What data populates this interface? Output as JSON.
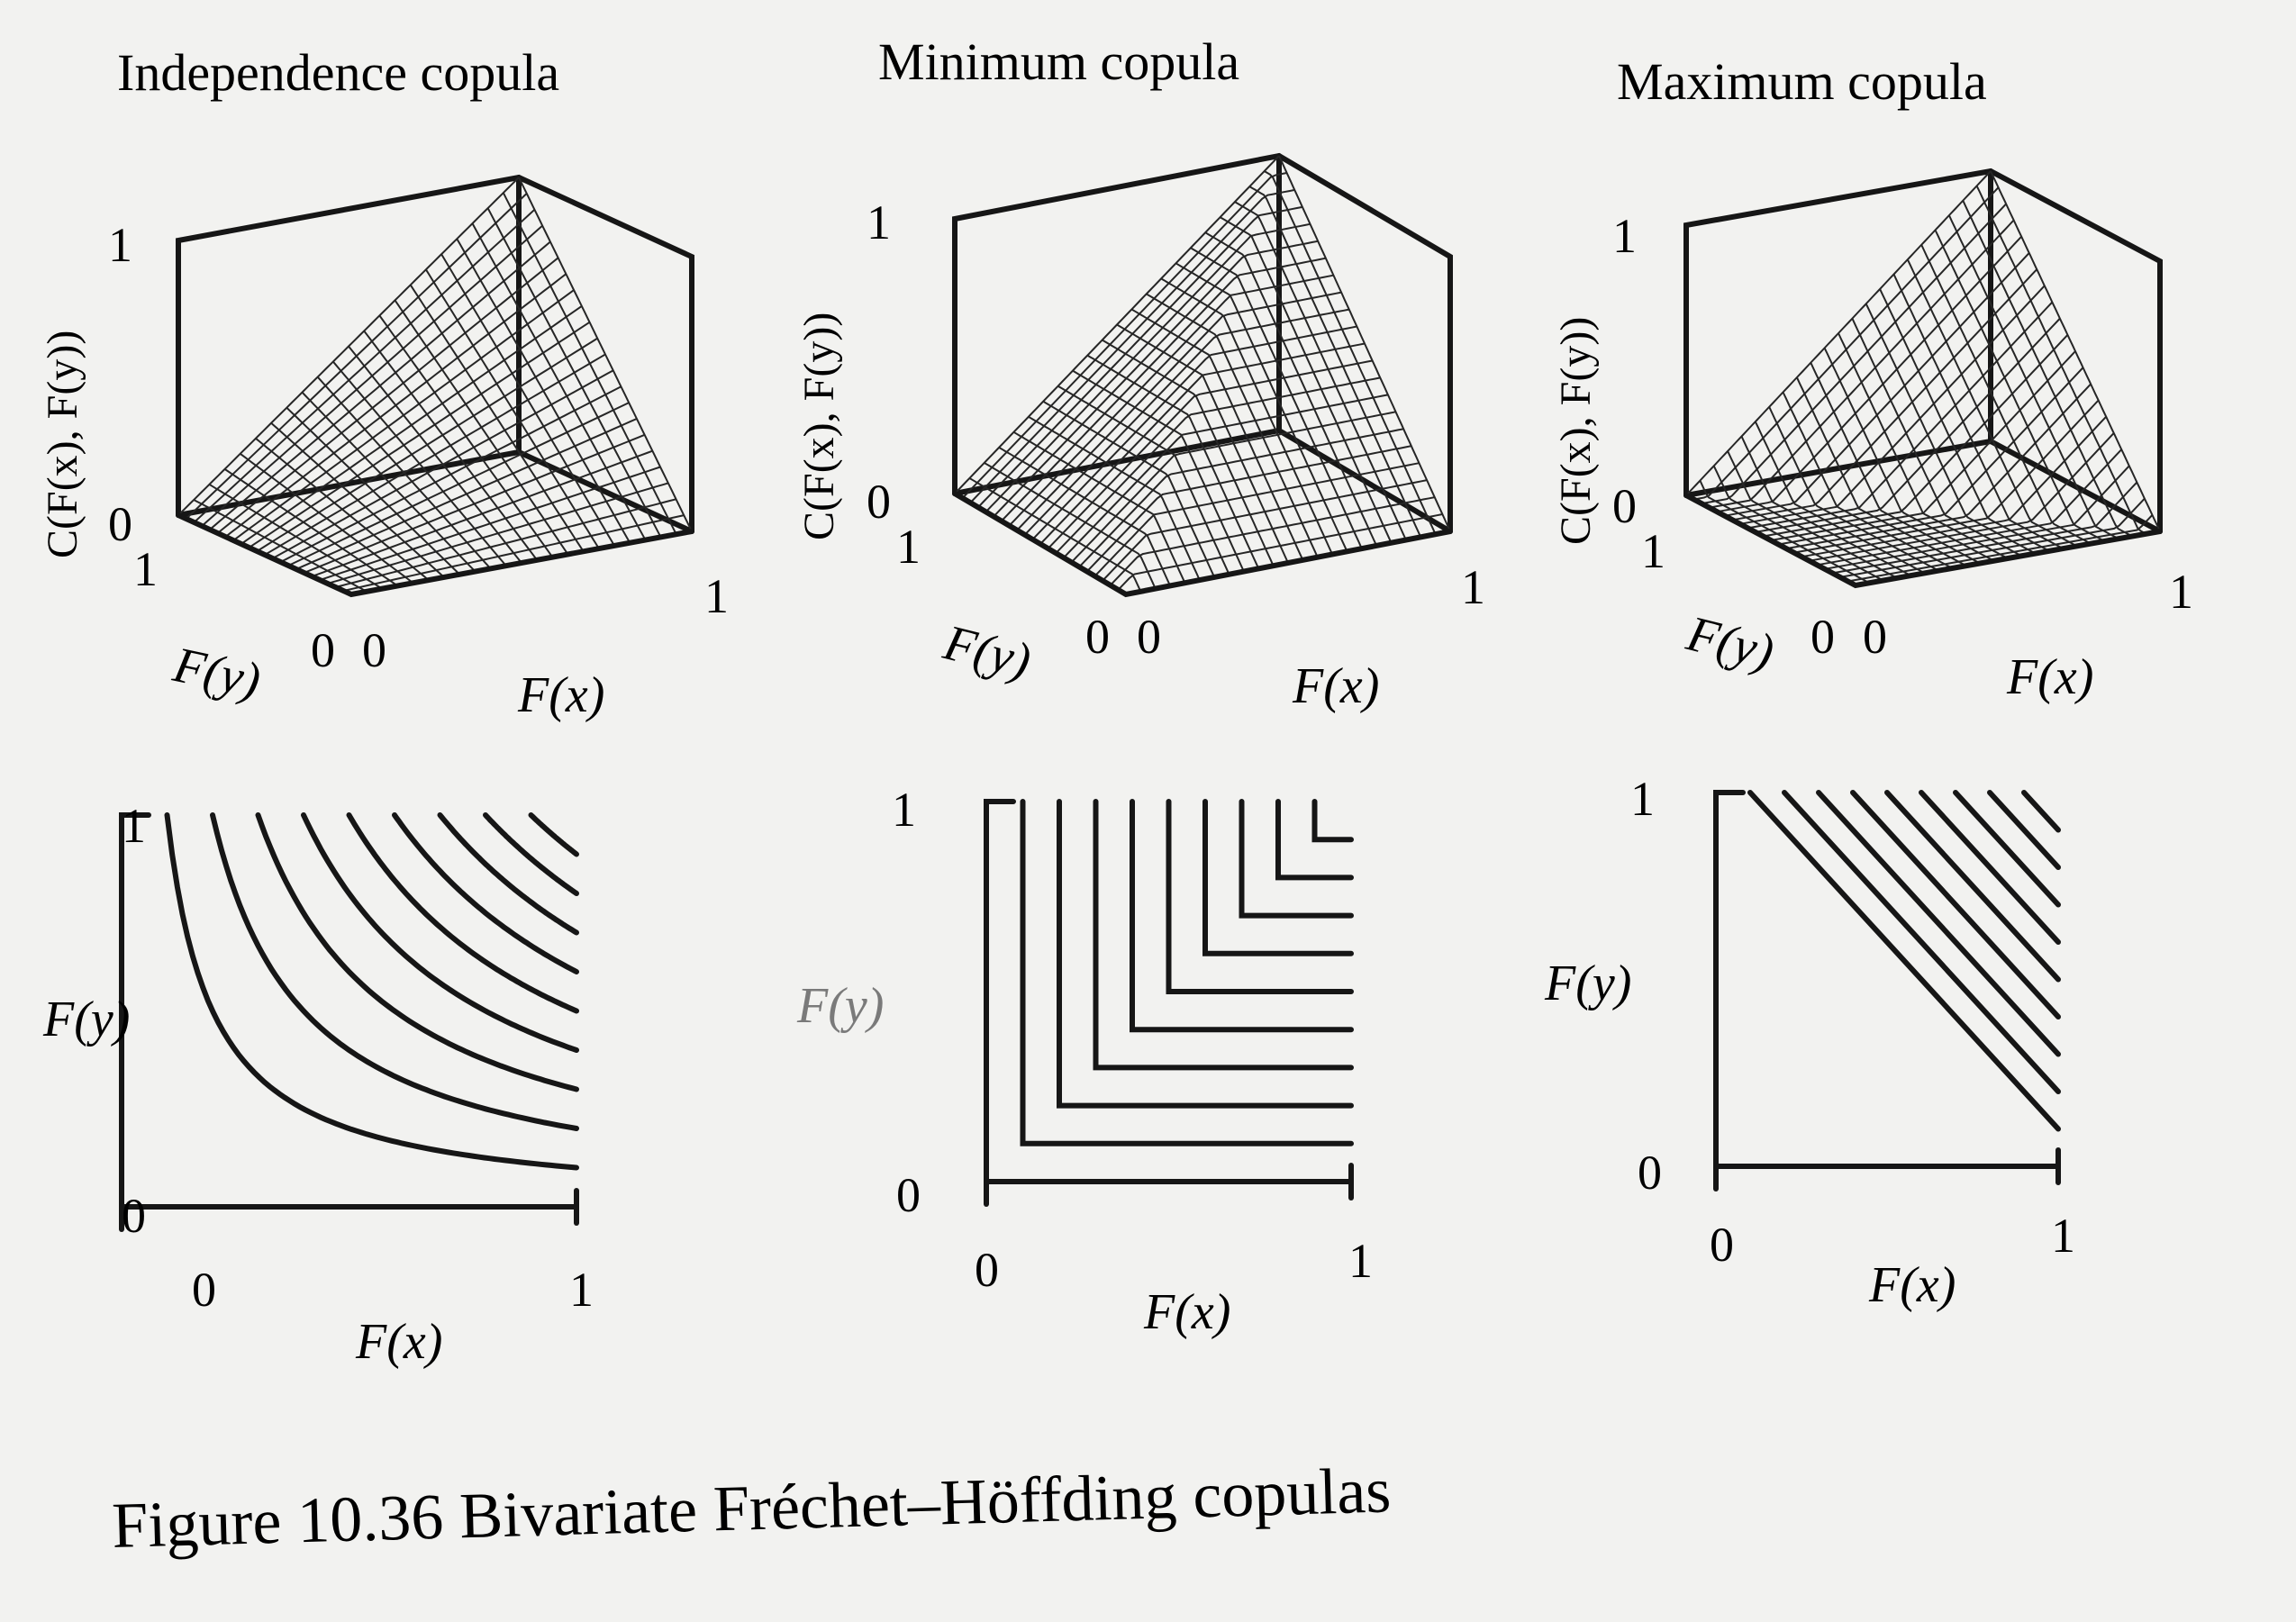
{
  "figure": {
    "caption": "Figure 10.36  Bivariate Fréchet–Höffding copulas",
    "panels": [
      {
        "title": "Independence copula",
        "surface": {
          "z_label": "C(F(x), F(y))",
          "z_ticks": [
            "1",
            "0"
          ],
          "y_axis_label": "F(y)",
          "y_ticks": [
            "1",
            "0"
          ],
          "x_axis_label": "F(x)",
          "x_ticks": [
            "0",
            "1"
          ]
        },
        "contour": {
          "y_axis_label": "F(y)",
          "y_ticks": [
            "1",
            "0"
          ],
          "x_axis_label": "F(x)",
          "x_ticks": [
            "0",
            "1"
          ]
        }
      },
      {
        "title": "Minimum copula",
        "surface": {
          "z_label": "C(F(x), F(y))",
          "z_ticks": [
            "1",
            "0"
          ],
          "y_axis_label": "F(y)",
          "y_ticks": [
            "1",
            "0"
          ],
          "x_axis_label": "F(x)",
          "x_ticks": [
            "0",
            "1"
          ]
        },
        "contour": {
          "y_axis_label": "F(y)",
          "y_ticks": [
            "1",
            "0"
          ],
          "x_axis_label": "F(x)",
          "x_ticks": [
            "0",
            "1"
          ]
        }
      },
      {
        "title": "Maximum copula",
        "surface": {
          "z_label": "C(F(x), F(y))",
          "z_ticks": [
            "1",
            "0"
          ],
          "y_axis_label": "F(y)",
          "y_ticks": [
            "1",
            "0"
          ],
          "x_axis_label": "F(x)",
          "x_ticks": [
            "0",
            "1"
          ]
        },
        "contour": {
          "y_axis_label": "F(y)",
          "y_ticks": [
            "1",
            "0"
          ],
          "x_axis_label": "F(x)",
          "x_ticks": [
            "0",
            "1"
          ]
        }
      }
    ]
  },
  "chart_data": [
    {
      "type": "surface",
      "title": "Independence copula",
      "function": "C(u,v) = u·v",
      "x_range": [
        0,
        1
      ],
      "y_range": [
        0,
        1
      ],
      "z_range": [
        0,
        1
      ],
      "grid": true
    },
    {
      "type": "surface",
      "title": "Minimum copula",
      "function": "C(u,v) = min(u, v)",
      "x_range": [
        0,
        1
      ],
      "y_range": [
        0,
        1
      ],
      "z_range": [
        0,
        1
      ],
      "grid": true
    },
    {
      "type": "surface",
      "title": "Maximum copula",
      "function": "C(u,v) = max(u + v − 1, 0)",
      "x_range": [
        0,
        1
      ],
      "y_range": [
        0,
        1
      ],
      "z_range": [
        0,
        1
      ],
      "grid": true
    },
    {
      "type": "contour",
      "function": "u·v",
      "levels": [
        0.1,
        0.2,
        0.3,
        0.4,
        0.5,
        0.6,
        0.7,
        0.8,
        0.9
      ],
      "x_range": [
        0,
        1
      ],
      "y_range": [
        0,
        1
      ]
    },
    {
      "type": "contour",
      "function": "min(u, v)",
      "levels": [
        0.1,
        0.2,
        0.3,
        0.4,
        0.5,
        0.6,
        0.7,
        0.8,
        0.9
      ],
      "x_range": [
        0,
        1
      ],
      "y_range": [
        0,
        1
      ]
    },
    {
      "type": "contour",
      "function": "max(u + v − 1, 0)",
      "levels": [
        0.1,
        0.2,
        0.3,
        0.4,
        0.5,
        0.6,
        0.7,
        0.8,
        0.9
      ],
      "x_range": [
        0,
        1
      ],
      "y_range": [
        0,
        1
      ]
    }
  ]
}
